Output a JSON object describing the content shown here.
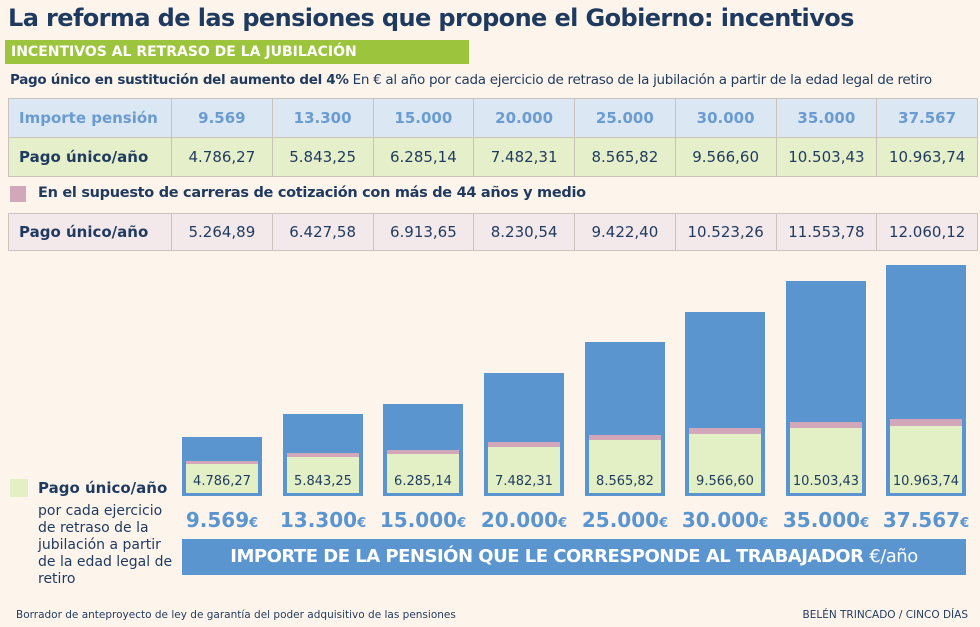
{
  "title": "La reforma de las pensiones que propone el Gobierno: incentivos",
  "subtitle": "INCENTIVOS AL RETRASO DE LA JUBILACIÓN",
  "intro_bold": "Pago único en sustitución del aumento del 4%",
  "intro_rest": " En € al año por cada ejercicio de retraso de la jubilación a partir de la edad legal de retiro",
  "table1": {
    "row1_label": "Importe pensión",
    "row1": [
      "9.569",
      "13.300",
      "15.000",
      "20.000",
      "25.000",
      "30.000",
      "35.000",
      "37.567"
    ],
    "row2_label": "Pago único/año",
    "row2": [
      "4.786,27",
      "5.843,25",
      "6.285,14",
      "7.482,31",
      "8.565,82",
      "9.566,60",
      "10.503,43",
      "10.963,74"
    ]
  },
  "pink_legend": "En el supuesto de carreras de cotización con más de 44 años y medio",
  "table2": {
    "label": "Pago único/año",
    "row": [
      "5.264,89",
      "6.427,58",
      "6.913,65",
      "8.230,54",
      "9.422,40",
      "10.523,26",
      "11.553,78",
      "12.060,12"
    ]
  },
  "legend": {
    "title": "Pago único/año",
    "desc": "por cada ejercicio de retraso de la jubilación a partir de la edad legal de retiro"
  },
  "axis_band": "IMPORTE DE LA PENSIÓN QUE LE CORRESPONDE AL TRABAJADOR",
  "axis_unit": "€/año",
  "euro": "€",
  "source": "Borrador de anteproyecto de ley de garantía del poder adquisitivo de las pensiones",
  "credit": "BELÉN TRINCADO / CINCO DÍAS",
  "colors": {
    "bar": "#5b95cf",
    "green": "#e3efc5",
    "pink": "#d3a7ba"
  },
  "chart_data": {
    "type": "bar",
    "categories": [
      "9.569",
      "13.300",
      "15.000",
      "20.000",
      "25.000",
      "30.000",
      "35.000",
      "37.567"
    ],
    "series": [
      {
        "name": "Importe pensión",
        "values": [
          9569,
          13300,
          15000,
          20000,
          25000,
          30000,
          35000,
          37567
        ]
      },
      {
        "name": "Pago único/año",
        "values": [
          4786.27,
          5843.25,
          6285.14,
          7482.31,
          8565.82,
          9566.6,
          10503.43,
          10963.74
        ]
      },
      {
        "name": "Pago único/año (más de 44 años y medio)",
        "values": [
          5264.89,
          6427.58,
          6913.65,
          8230.54,
          9422.4,
          10523.26,
          11553.78,
          12060.12
        ]
      }
    ],
    "labels": [
      "4.786,27",
      "5.843,25",
      "6.285,14",
      "7.482,31",
      "8.565,82",
      "9.566,60",
      "10.503,43",
      "10.963,74"
    ],
    "xlabel": "IMPORTE DE LA PENSIÓN QUE LE CORRESPONDE AL TRABAJADOR €/año"
  }
}
